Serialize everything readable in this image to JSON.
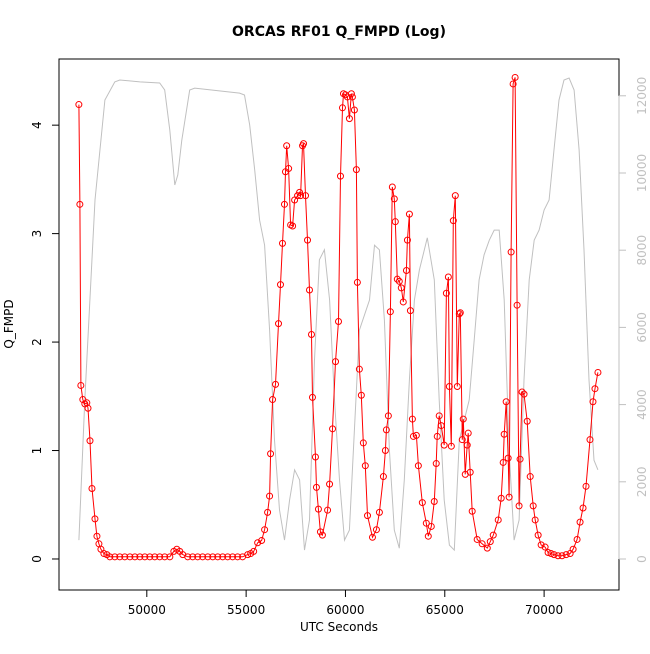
{
  "chart_data": {
    "type": "line",
    "title": "ORCAS RF01 Q_FMPD (Log)",
    "x_label": "UTC Seconds",
    "y_label": "Q_FMPD",
    "xlim": [
      45580,
      73770
    ],
    "xticks": [
      50000,
      55000,
      60000,
      65000,
      70000
    ],
    "ylim": [
      -0.286,
      4.61
    ],
    "yticks": [
      0,
      1,
      2,
      3,
      4
    ],
    "y2lim": [
      -803,
      12953
    ],
    "y2ticks": [
      0,
      2000,
      4000,
      6000,
      8000,
      10000,
      12000
    ],
    "y2_color": "#c0c0c0",
    "series": [
      {
        "color": "#ff0000",
        "marker": "circle",
        "x": [
          46580,
          46630,
          46680,
          46780,
          46880,
          46980,
          47040,
          47140,
          47240,
          47390,
          47490,
          47590,
          47690,
          47840,
          47990,
          48140,
          48390,
          48640,
          48890,
          49150,
          49400,
          49650,
          49900,
          50150,
          50400,
          50650,
          50900,
          51160,
          51360,
          51510,
          51660,
          51810,
          52060,
          52310,
          52560,
          52810,
          53070,
          53320,
          53570,
          53820,
          54070,
          54320,
          54570,
          54820,
          55080,
          55230,
          55380,
          55580,
          55780,
          55930,
          56080,
          56180,
          56230,
          56330,
          56480,
          56630,
          56730,
          56830,
          56930,
          56980,
          57040,
          57140,
          57240,
          57340,
          57440,
          57590,
          57690,
          57740,
          57840,
          57890,
          57990,
          58090,
          58190,
          58290,
          58340,
          58490,
          58540,
          58640,
          58740,
          58840,
          59100,
          59200,
          59350,
          59500,
          59650,
          59750,
          59850,
          59900,
          60000,
          60100,
          60200,
          60300,
          60350,
          60450,
          60550,
          60600,
          60700,
          60800,
          60900,
          61000,
          61110,
          61360,
          61560,
          61710,
          61910,
          62010,
          62060,
          62160,
          62260,
          62360,
          62460,
          62510,
          62610,
          62710,
          62810,
          62910,
          63070,
          63120,
          63220,
          63270,
          63370,
          63420,
          63570,
          63670,
          63870,
          64070,
          64170,
          64320,
          64470,
          64570,
          64620,
          64720,
          64820,
          64970,
          65080,
          65180,
          65230,
          65330,
          65430,
          65530,
          65630,
          65730,
          65780,
          65880,
          65930,
          66030,
          66130,
          66180,
          66280,
          66380,
          66630,
          66880,
          67140,
          67290,
          67440,
          67690,
          67840,
          67940,
          67990,
          68090,
          68190,
          68240,
          68340,
          68440,
          68540,
          68640,
          68740,
          68790,
          68890,
          68990,
          69150,
          69300,
          69450,
          69550,
          69700,
          69850,
          70050,
          70200,
          70350,
          70500,
          70700,
          70900,
          71110,
          71310,
          71460,
          71660,
          71810,
          71960,
          72110,
          72310,
          72460,
          72560,
          72710
        ],
        "values": [
          4.19,
          3.27,
          1.6,
          1.47,
          1.43,
          1.44,
          1.39,
          1.09,
          0.65,
          0.37,
          0.21,
          0.14,
          0.09,
          0.05,
          0.04,
          0.02,
          0.02,
          0.02,
          0.02,
          0.02,
          0.02,
          0.02,
          0.02,
          0.02,
          0.02,
          0.02,
          0.02,
          0.02,
          0.07,
          0.09,
          0.07,
          0.04,
          0.02,
          0.02,
          0.02,
          0.02,
          0.02,
          0.02,
          0.02,
          0.02,
          0.02,
          0.02,
          0.02,
          0.02,
          0.04,
          0.05,
          0.07,
          0.15,
          0.17,
          0.27,
          0.43,
          0.58,
          0.97,
          1.47,
          1.61,
          2.17,
          2.53,
          2.91,
          3.27,
          3.57,
          3.81,
          3.6,
          3.08,
          3.07,
          3.31,
          3.35,
          3.38,
          3.35,
          3.81,
          3.83,
          3.35,
          2.94,
          2.48,
          2.07,
          1.49,
          0.94,
          0.66,
          0.46,
          0.25,
          0.22,
          0.45,
          0.69,
          1.2,
          1.82,
          2.19,
          3.53,
          4.16,
          4.29,
          4.28,
          4.26,
          4.06,
          4.29,
          4.26,
          4.14,
          3.59,
          2.55,
          1.75,
          1.51,
          1.07,
          0.86,
          0.4,
          0.2,
          0.27,
          0.43,
          0.76,
          1.0,
          1.19,
          1.32,
          2.28,
          3.43,
          3.32,
          3.11,
          2.58,
          2.56,
          2.5,
          2.37,
          2.66,
          2.94,
          3.18,
          2.29,
          1.29,
          1.13,
          1.14,
          0.86,
          0.52,
          0.33,
          0.21,
          0.3,
          0.53,
          0.88,
          1.13,
          1.32,
          1.23,
          1.05,
          2.45,
          2.6,
          1.59,
          1.04,
          3.12,
          3.35,
          1.59,
          2.26,
          2.27,
          1.1,
          1.29,
          0.78,
          1.05,
          1.16,
          0.8,
          0.44,
          0.18,
          0.14,
          0.1,
          0.16,
          0.22,
          0.36,
          0.56,
          0.89,
          1.15,
          1.45,
          0.93,
          0.57,
          2.83,
          4.38,
          4.44,
          2.34,
          0.49,
          0.92,
          1.54,
          1.52,
          1.27,
          0.76,
          0.49,
          0.36,
          0.22,
          0.13,
          0.11,
          0.06,
          0.05,
          0.04,
          0.03,
          0.03,
          0.04,
          0.05,
          0.09,
          0.18,
          0.34,
          0.47,
          0.67,
          1.1,
          1.45,
          1.57,
          1.72
        ]
      },
      {
        "color": "#c0c0c0",
        "axis": "y2",
        "x": [
          46580,
          46880,
          47390,
          47890,
          48390,
          48640,
          49650,
          50650,
          50900,
          51160,
          51410,
          51560,
          51760,
          52160,
          52410,
          54670,
          54920,
          55180,
          55430,
          55680,
          55930,
          56180,
          56430,
          56680,
          56930,
          57190,
          57440,
          57690,
          57940,
          58190,
          58440,
          58690,
          58940,
          59200,
          59450,
          59700,
          59950,
          60200,
          60450,
          60700,
          61210,
          61460,
          61710,
          61960,
          62210,
          62460,
          62710,
          62960,
          63220,
          63470,
          63720,
          64120,
          64470,
          64720,
          64970,
          65230,
          65480,
          65730,
          65980,
          66230,
          66480,
          66730,
          66980,
          67240,
          67490,
          67740,
          67990,
          68240,
          68490,
          68740,
          68990,
          69250,
          69500,
          69750,
          70000,
          70250,
          70500,
          70750,
          71000,
          71260,
          71510,
          71760,
          72010,
          72260,
          72510,
          72710
        ],
        "values": [
          490,
          4120,
          9300,
          11890,
          12360,
          12410,
          12360,
          12330,
          12150,
          11110,
          9690,
          9950,
          10850,
          12150,
          12200,
          12070,
          12020,
          11240,
          10080,
          8780,
          8130,
          5930,
          3080,
          1270,
          490,
          1530,
          2310,
          2050,
          230,
          1010,
          5160,
          7750,
          8010,
          6710,
          4120,
          2050,
          490,
          750,
          3340,
          5930,
          6710,
          8130,
          8010,
          6190,
          2820,
          750,
          280,
          2050,
          4640,
          6710,
          7490,
          8320,
          7230,
          4120,
          1530,
          360,
          230,
          3080,
          3600,
          4120,
          5670,
          7230,
          7880,
          8260,
          8520,
          8520,
          6710,
          2820,
          490,
          1010,
          4640,
          7230,
          8260,
          8520,
          9040,
          9300,
          10600,
          11890,
          12410,
          12460,
          12150,
          10600,
          8010,
          4640,
          2560,
          2310
        ]
      }
    ]
  }
}
